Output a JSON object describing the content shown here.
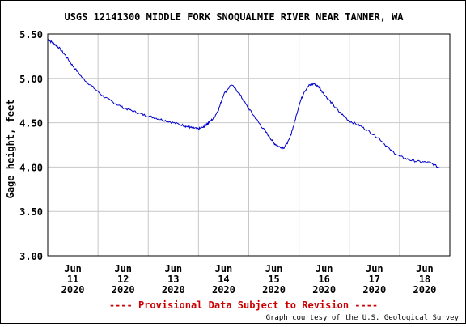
{
  "chart_data": {
    "type": "line",
    "title": "USGS 12141300 MIDDLE FORK SNOQUALMIE RIVER NEAR TANNER, WA",
    "ylabel": "Gage height, feet",
    "xlabel": "",
    "ylim": [
      3.0,
      5.5
    ],
    "xlim": [
      0,
      8
    ],
    "yticks": [
      {
        "v": 3.0,
        "label": "3.00"
      },
      {
        "v": 3.5,
        "label": "3.50"
      },
      {
        "v": 4.0,
        "label": "4.00"
      },
      {
        "v": 4.5,
        "label": "4.50"
      },
      {
        "v": 5.0,
        "label": "5.00"
      },
      {
        "v": 5.5,
        "label": "5.50"
      }
    ],
    "xticks": [
      {
        "v": 0.5,
        "l1": "Jun",
        "l2": "11",
        "l3": "2020"
      },
      {
        "v": 1.5,
        "l1": "Jun",
        "l2": "12",
        "l3": "2020"
      },
      {
        "v": 2.5,
        "l1": "Jun",
        "l2": "13",
        "l3": "2020"
      },
      {
        "v": 3.5,
        "l1": "Jun",
        "l2": "14",
        "l3": "2020"
      },
      {
        "v": 4.5,
        "l1": "Jun",
        "l2": "15",
        "l3": "2020"
      },
      {
        "v": 5.5,
        "l1": "Jun",
        "l2": "16",
        "l3": "2020"
      },
      {
        "v": 6.5,
        "l1": "Jun",
        "l2": "17",
        "l3": "2020"
      },
      {
        "v": 7.5,
        "l1": "Jun",
        "l2": "18",
        "l3": "2020"
      }
    ],
    "grid": true,
    "series": [
      {
        "color": "#0000cc",
        "x": [
          0.0,
          0.1,
          0.2,
          0.35,
          0.5,
          0.7,
          0.9,
          1.1,
          1.3,
          1.5,
          1.7,
          1.9,
          2.1,
          2.3,
          2.5,
          2.7,
          2.8,
          2.9,
          3.0,
          3.1,
          3.15,
          3.2,
          3.3,
          3.4,
          3.5,
          3.65,
          3.8,
          3.95,
          4.1,
          4.25,
          4.4,
          4.5,
          4.6,
          4.7,
          4.8,
          4.9,
          5.0,
          5.1,
          5.2,
          5.3,
          5.4,
          5.5,
          5.65,
          5.8,
          6.0,
          6.2,
          6.4,
          6.6,
          6.8,
          7.0,
          7.2,
          7.4,
          7.6,
          7.8
        ],
        "y": [
          5.44,
          5.4,
          5.36,
          5.26,
          5.14,
          5.0,
          4.9,
          4.8,
          4.73,
          4.67,
          4.63,
          4.59,
          4.56,
          4.53,
          4.5,
          4.47,
          4.45,
          4.44,
          4.43,
          4.45,
          4.48,
          4.5,
          4.55,
          4.65,
          4.82,
          4.93,
          4.84,
          4.7,
          4.58,
          4.46,
          4.35,
          4.27,
          4.23,
          4.22,
          4.3,
          4.48,
          4.7,
          4.85,
          4.92,
          4.94,
          4.9,
          4.82,
          4.72,
          4.62,
          4.52,
          4.47,
          4.4,
          4.32,
          4.2,
          4.12,
          4.08,
          4.06,
          4.05,
          3.99
        ]
      }
    ]
  },
  "footer": {
    "provisional": "---- Provisional Data Subject to Revision ----",
    "credit": "Graph courtesy of the U.S. Geological Survey"
  }
}
